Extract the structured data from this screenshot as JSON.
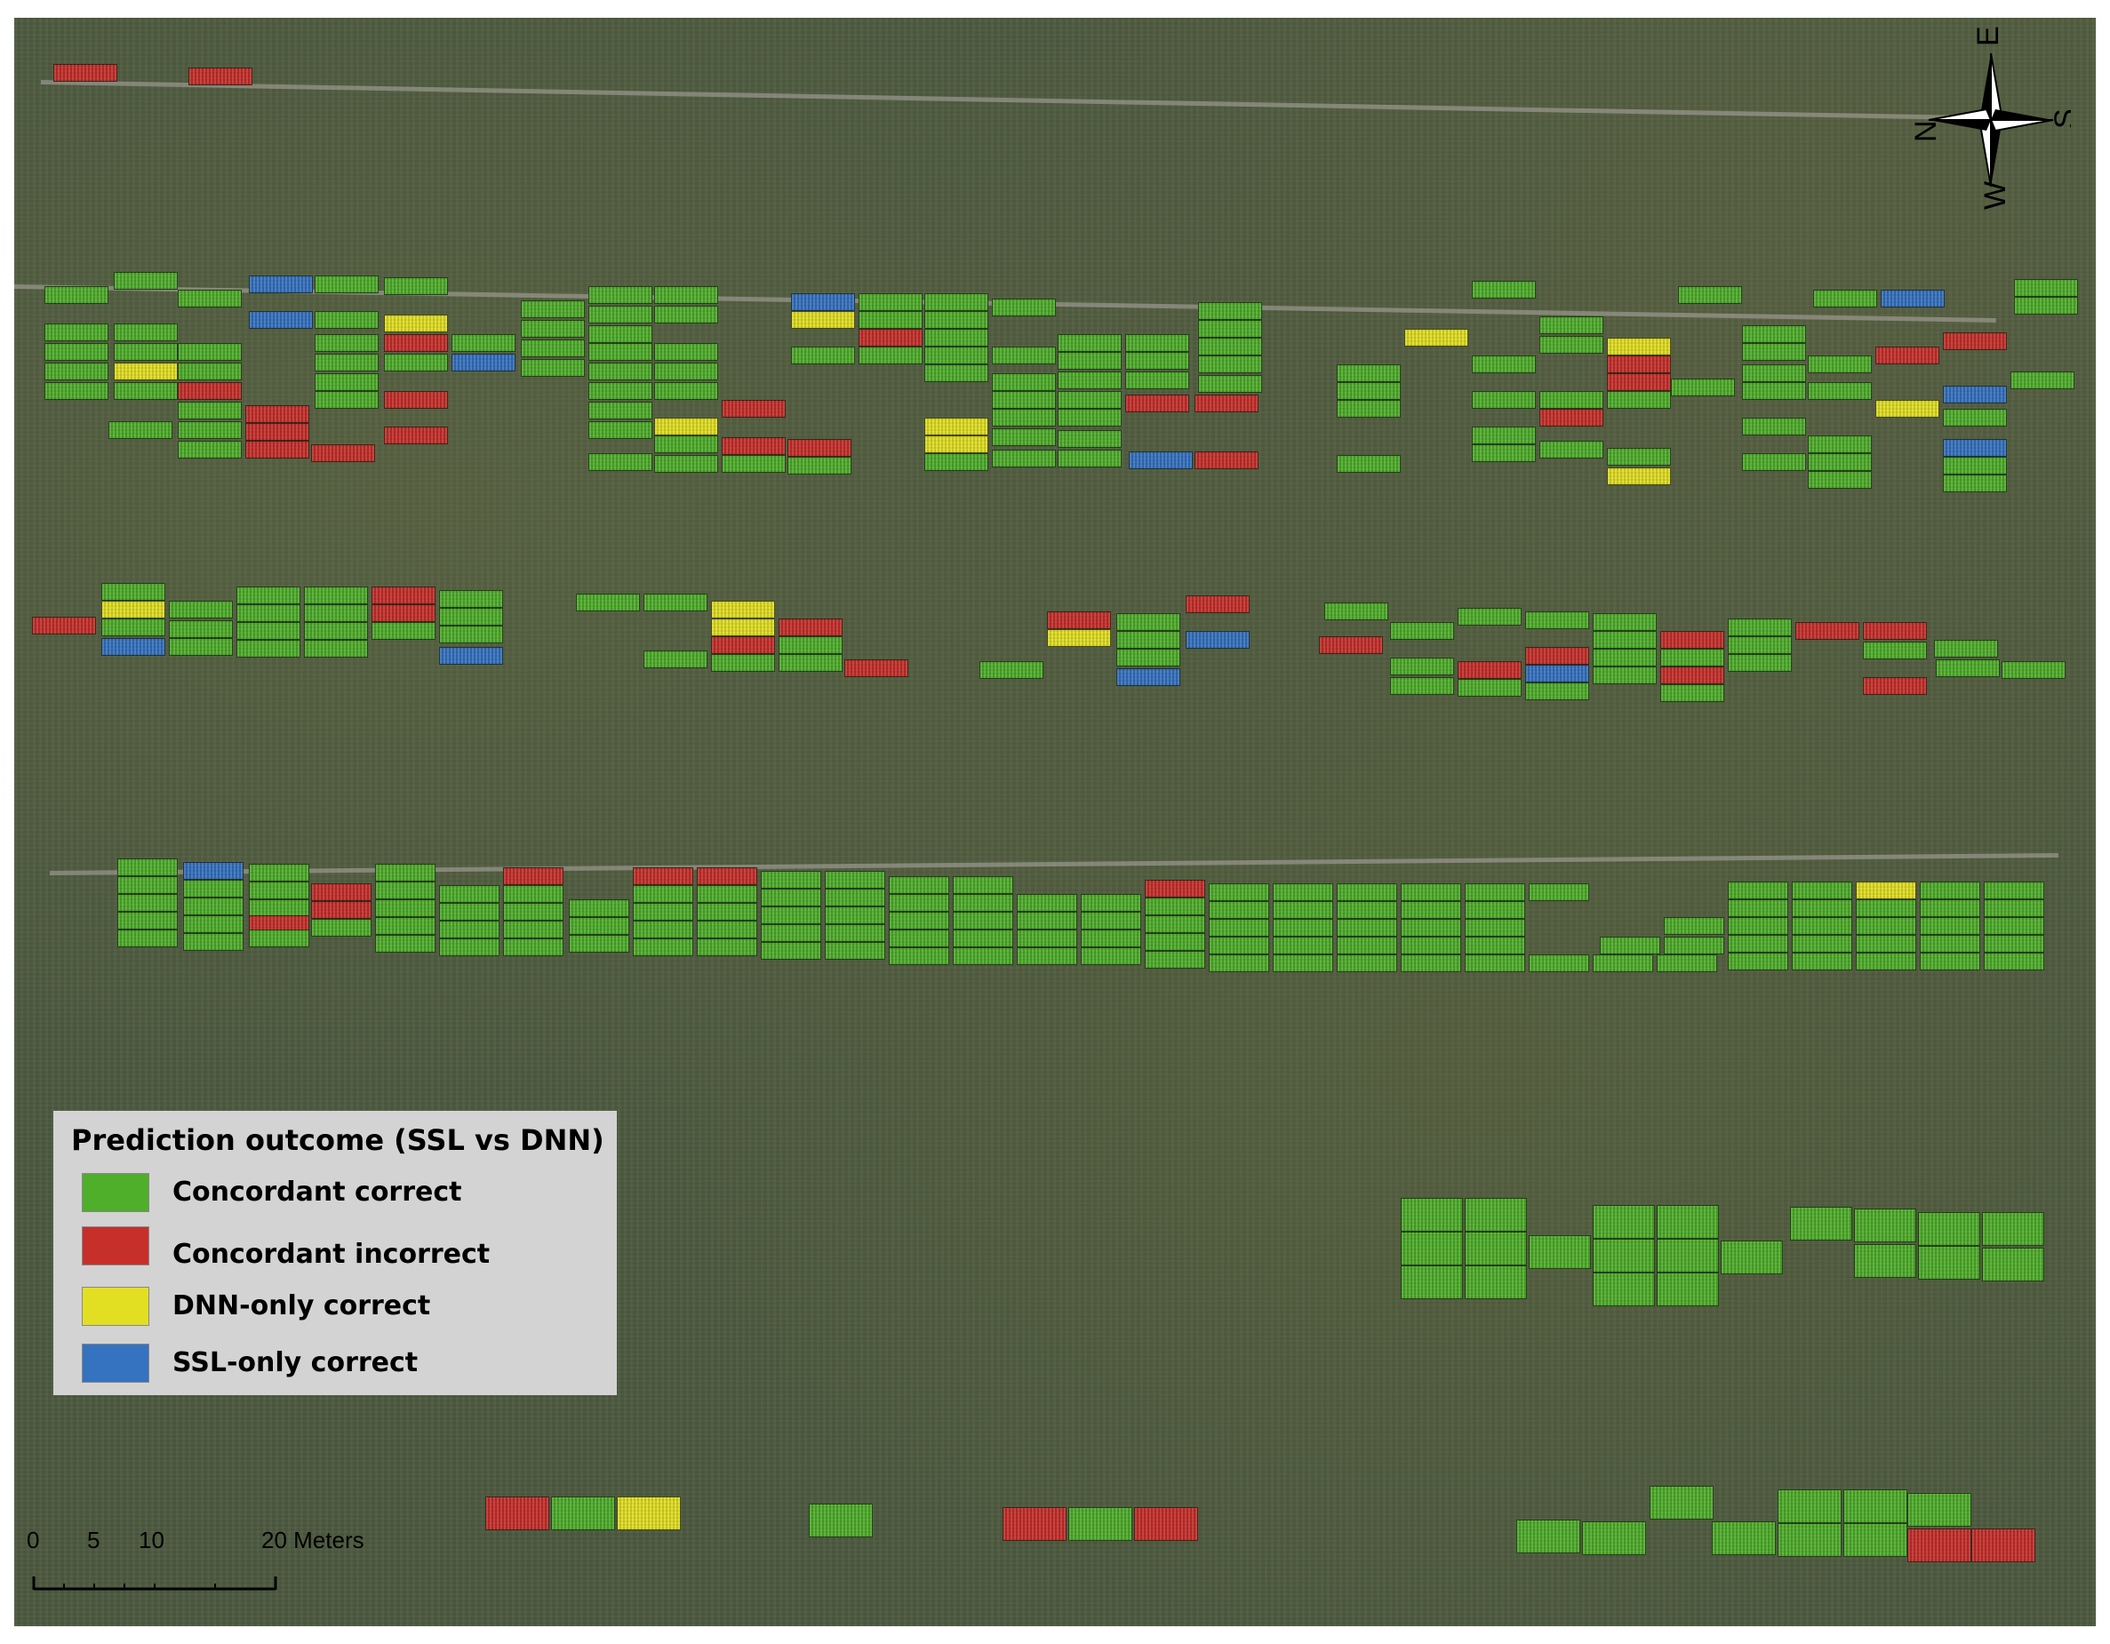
{
  "legend": {
    "title": "Prediction outcome (SSL vs DNN)",
    "items": [
      {
        "key": "cc",
        "label": "Concordant correct",
        "color": "#4fae2a"
      },
      {
        "key": "ci",
        "label": "Concordant incorrect",
        "color": "#c62f2a"
      },
      {
        "key": "dnn",
        "label": "DNN-only correct",
        "color": "#e2df22"
      },
      {
        "key": "ssl",
        "label": "SSL-only correct",
        "color": "#3572bf"
      }
    ]
  },
  "compass": {
    "north": "N",
    "east": "E",
    "south": "S",
    "west": "W",
    "icon": "compass-rose-icon"
  },
  "scale": {
    "labels": [
      "0",
      "5",
      "10",
      "20 Meters"
    ],
    "unit": "Meters"
  }
}
